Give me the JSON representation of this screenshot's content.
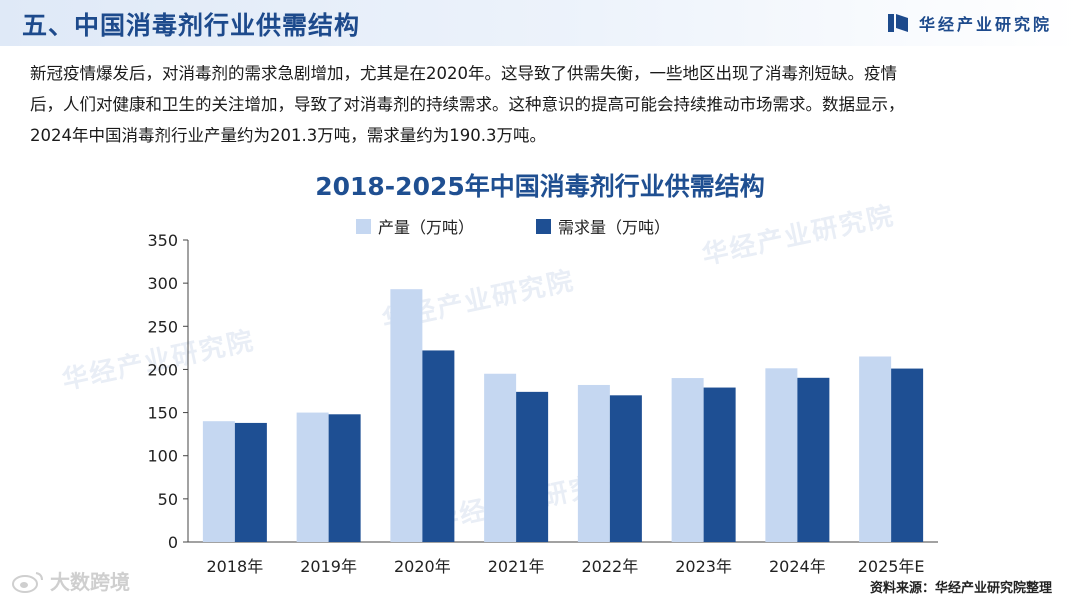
{
  "header": {
    "title": "五、中国消毒剂行业供需结构",
    "brand_name": "华经产业研究院"
  },
  "intro": {
    "lines": [
      "新冠疫情爆发后，对消毒剂的需求急剧增加，尤其是在2020年。这导致了供需失衡，一些地区出现了消毒剂短缺。疫情",
      "后，人们对健康和卫生的关注增加，导致了对消毒剂的持续需求。这种意识的提高可能会持续推动市场需求。数据显示，",
      "2024年中国消毒剂行业产量约为201.3万吨，需求量约为190.3万吨。"
    ]
  },
  "chart_data": {
    "type": "bar",
    "title": "2018-2025年中国消毒剂行业供需结构",
    "categories": [
      "2018年",
      "2019年",
      "2020年",
      "2021年",
      "2022年",
      "2023年",
      "2024年",
      "2025年E"
    ],
    "series": [
      {
        "name": "产量（万吨）",
        "color": "#c5d7f1",
        "values": [
          140,
          150,
          293,
          195,
          182,
          190,
          201.3,
          215
        ]
      },
      {
        "name": "需求量（万吨）",
        "color": "#1e4f93",
        "values": [
          138,
          148,
          222,
          174,
          170,
          179,
          190.3,
          201
        ]
      }
    ],
    "ylim": [
      0,
      350
    ],
    "yticks": [
      0,
      50,
      100,
      150,
      200,
      250,
      300,
      350
    ],
    "grid": false,
    "legend": "top"
  },
  "source": "资料来源：华经产业研究院整理",
  "footer_mark": "大数跨境",
  "watermark_text": "华经产业研究院"
}
